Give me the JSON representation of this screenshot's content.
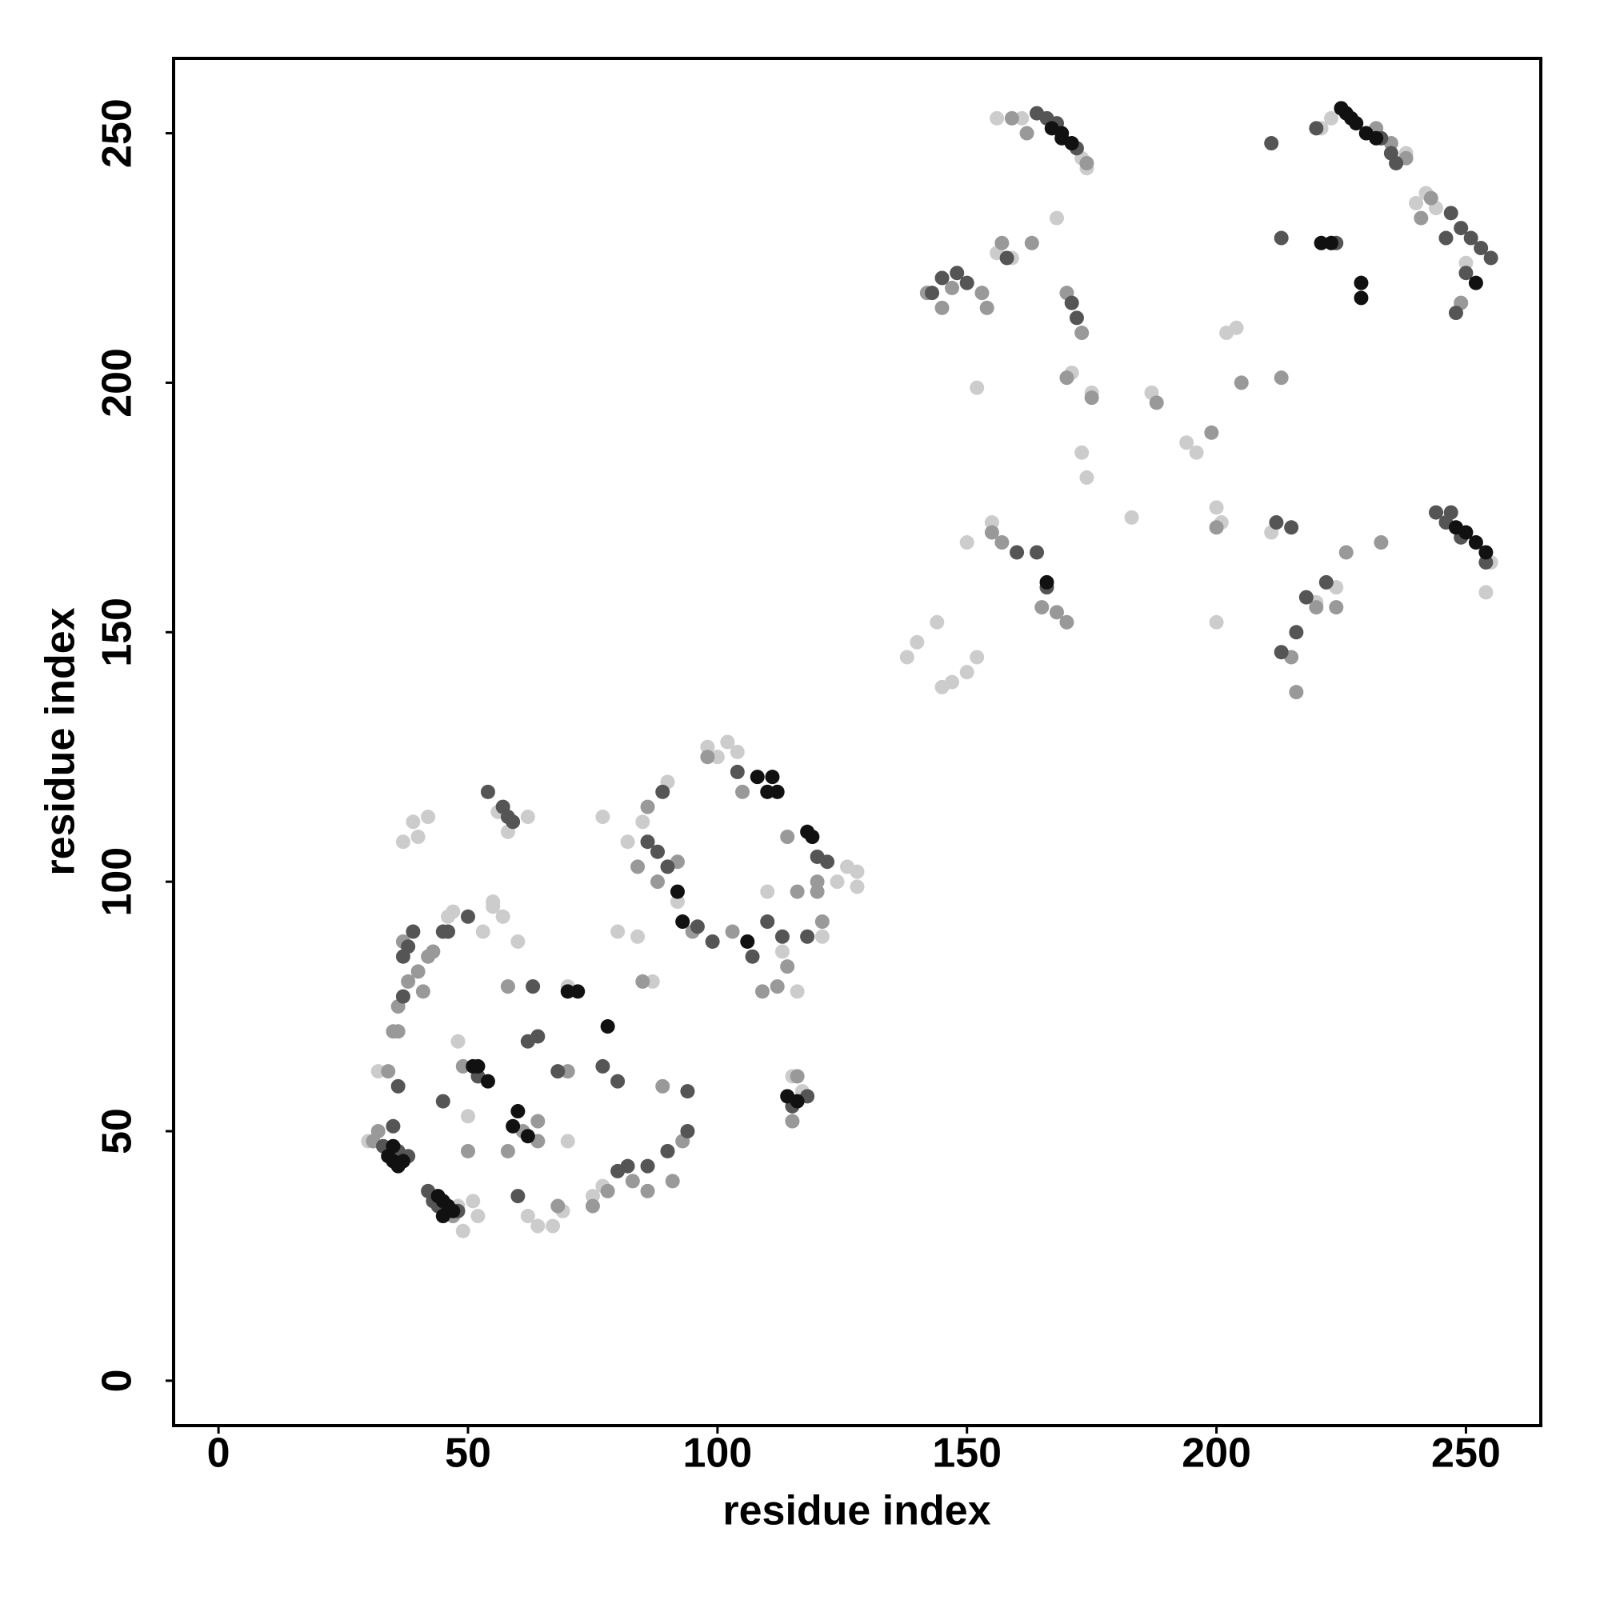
{
  "chart_data": {
    "type": "scatter",
    "x_label": "residue index",
    "y_label": "residue index",
    "xlim": [
      -9,
      265
    ],
    "ylim": [
      -9,
      265
    ],
    "xticks": [
      0,
      50,
      100,
      150,
      200,
      250
    ],
    "yticks": [
      0,
      50,
      100,
      150,
      200,
      250
    ],
    "series": [
      {
        "color": "#cccccc",
        "x": [
          30,
          32,
          39,
          40,
          48,
          49,
          51,
          52,
          53,
          55,
          57,
          60,
          62,
          56,
          58,
          47,
          48,
          50,
          64,
          67,
          69,
          70,
          70,
          77,
          80,
          82,
          84,
          85,
          87,
          90,
          92,
          98,
          100,
          102,
          104,
          110,
          113,
          116,
          115,
          117,
          124,
          128,
          128,
          121,
          126,
          138,
          140,
          144,
          145,
          147,
          150,
          152,
          150,
          155,
          152,
          156,
          159,
          156,
          161,
          168,
          173,
          174,
          171,
          173,
          174,
          175,
          183,
          187,
          194,
          196,
          200,
          201,
          200,
          202,
          204,
          211,
          220,
          224,
          236,
          240,
          242,
          244,
          250,
          255,
          254,
          238,
          221,
          223,
          37,
          42,
          46,
          55,
          75,
          77,
          62
        ],
        "values": [
          48,
          62,
          112,
          109,
          35,
          30,
          36,
          33,
          90,
          95,
          93,
          88,
          113,
          114,
          110,
          94,
          68,
          53,
          31,
          31,
          34,
          79,
          48,
          113,
          90,
          108,
          89,
          112,
          80,
          120,
          96,
          127,
          125,
          128,
          126,
          98,
          86,
          78,
          61,
          58,
          100,
          102,
          99,
          89,
          103,
          145,
          148,
          152,
          139,
          140,
          142,
          145,
          168,
          172,
          199,
          226,
          225,
          253,
          253,
          233,
          245,
          243,
          202,
          186,
          181,
          198,
          173,
          198,
          188,
          186,
          175,
          172,
          152,
          210,
          211,
          170,
          156,
          159,
          244,
          236,
          238,
          235,
          224,
          164,
          158,
          246,
          251,
          253,
          108,
          113,
          93,
          96,
          37,
          39,
          33
        ]
      },
      {
        "color": "#999999",
        "x": [
          31,
          32,
          34,
          35,
          36,
          38,
          40,
          41,
          43,
          50,
          49,
          58,
          58,
          61,
          64,
          68,
          70,
          75,
          78,
          83,
          86,
          91,
          89,
          93,
          85,
          86,
          88,
          92,
          95,
          98,
          103,
          105,
          109,
          112,
          114,
          116,
          120,
          121,
          114,
          157,
          154,
          145,
          142,
          153,
          163,
          170,
          173,
          170,
          165,
          168,
          170,
          157,
          155,
          175,
          188,
          199,
          200,
          205,
          213,
          216,
          215,
          220,
          224,
          226,
          233,
          241,
          243,
          249,
          162,
          174,
          232,
          235,
          238,
          225,
          159,
          147,
          36,
          37,
          42,
          47,
          64,
          120,
          116,
          115,
          84
        ],
        "values": [
          48,
          50,
          62,
          70,
          75,
          80,
          82,
          78,
          86,
          46,
          63,
          46,
          79,
          50,
          48,
          35,
          62,
          35,
          38,
          40,
          38,
          40,
          59,
          48,
          80,
          115,
          100,
          104,
          90,
          125,
          90,
          118,
          78,
          79,
          83,
          98,
          98,
          92,
          109,
          228,
          215,
          215,
          218,
          218,
          228,
          218,
          210,
          201,
          155,
          154,
          152,
          168,
          170,
          197,
          196,
          190,
          171,
          200,
          201,
          138,
          145,
          155,
          155,
          166,
          168,
          233,
          237,
          216,
          250,
          244,
          251,
          248,
          245,
          255,
          253,
          219,
          70,
          88,
          85,
          33,
          52,
          100,
          61,
          52,
          103
        ]
      },
      {
        "color": "#555555",
        "x": [
          33,
          36,
          38,
          42,
          43,
          44,
          48,
          57,
          58,
          59,
          54,
          36,
          37,
          38,
          39,
          45,
          46,
          50,
          63,
          62,
          68,
          77,
          80,
          86,
          88,
          90,
          89,
          96,
          99,
          104,
          107,
          110,
          113,
          118,
          120,
          122,
          115,
          118,
          94,
          94,
          90,
          80,
          82,
          86,
          60,
          233,
          235,
          236,
          247,
          249,
          251,
          253,
          255,
          164,
          166,
          168,
          172,
          143,
          145,
          148,
          150,
          158,
          160,
          164,
          166,
          212,
          215,
          218,
          216,
          213,
          222,
          224,
          213,
          211,
          220,
          244,
          246,
          249,
          254,
          171,
          172,
          246,
          250,
          248,
          247,
          35,
          37,
          45,
          52,
          64
        ],
        "values": [
          47,
          46,
          45,
          38,
          36,
          35,
          34,
          115,
          113,
          112,
          118,
          59,
          85,
          87,
          90,
          90,
          90,
          93,
          79,
          68,
          62,
          63,
          60,
          108,
          106,
          103,
          118,
          91,
          88,
          122,
          85,
          92,
          89,
          89,
          105,
          104,
          55,
          57,
          50,
          58,
          46,
          42,
          43,
          43,
          37,
          249,
          246,
          244,
          234,
          231,
          229,
          227,
          225,
          254,
          253,
          252,
          247,
          218,
          221,
          222,
          220,
          225,
          166,
          166,
          159,
          172,
          171,
          157,
          150,
          146,
          160,
          228,
          229,
          248,
          251,
          174,
          172,
          169,
          164,
          216,
          213,
          229,
          222,
          214,
          174,
          51,
          77,
          56,
          61,
          69
        ]
      },
      {
        "color": "#111111",
        "x": [
          34,
          35,
          36,
          37,
          44,
          45,
          46,
          47,
          60,
          59,
          54,
          51,
          70,
          72,
          78,
          92,
          93,
          106,
          108,
          110,
          111,
          112,
          118,
          119,
          114,
          116,
          226,
          228,
          230,
          232,
          167,
          169,
          171,
          221,
          223,
          229,
          229,
          248,
          250,
          252,
          254,
          252,
          166,
          169,
          227,
          225,
          52,
          62,
          35,
          45
        ],
        "values": [
          45,
          44,
          43,
          44,
          37,
          36,
          35,
          34,
          54,
          51,
          60,
          63,
          78,
          78,
          71,
          98,
          92,
          88,
          121,
          118,
          121,
          118,
          110,
          109,
          57,
          56,
          254,
          252,
          250,
          249,
          251,
          249,
          248,
          228,
          228,
          220,
          217,
          171,
          170,
          168,
          166,
          220,
          160,
          250,
          253,
          255,
          63,
          49,
          47,
          33
        ]
      }
    ]
  }
}
